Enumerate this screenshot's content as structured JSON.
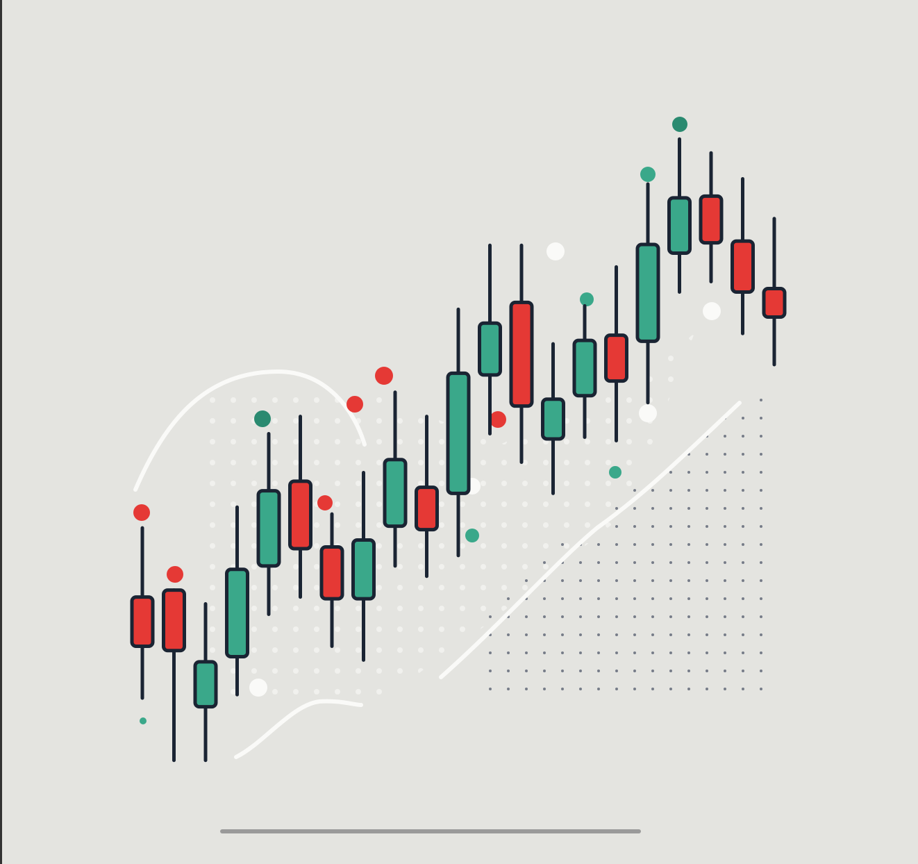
{
  "chart_data": {
    "type": "candlestick",
    "open": [
      30.9,
      31.7,
      18.2,
      24.0,
      34.5,
      44.3,
      36.7,
      30.7,
      39.1,
      43.6,
      42.9,
      56.6,
      65.0,
      49.2,
      54.2,
      61.2,
      60.5,
      70.7,
      77.3,
      72.1,
      66.6
    ],
    "high": [
      38.9,
      31.7,
      30.1,
      41.3,
      49.8,
      51.8,
      40.5,
      45.3,
      54.6,
      51.8,
      64.2,
      71.6,
      71.6,
      60.2,
      64.6,
      69.1,
      78.7,
      83.9,
      82.3,
      79.3,
      74.7
    ],
    "low": [
      19.2,
      12.0,
      12.0,
      19.6,
      28.9,
      30.9,
      25.2,
      23.6,
      34.5,
      33.3,
      35.7,
      49.8,
      46.5,
      42.9,
      49.4,
      49.0,
      53.4,
      66.2,
      67.4,
      61.4,
      57.8
    ],
    "close": [
      25.2,
      24.7,
      23.4,
      34.1,
      43.2,
      36.5,
      30.7,
      37.5,
      46.8,
      38.7,
      56.8,
      62.6,
      53.0,
      53.8,
      60.6,
      55.9,
      71.7,
      77.1,
      71.9,
      66.2,
      63.3
    ],
    "up_color": "#3aa88a",
    "down_color": "#e53935",
    "ylim": [
      0,
      100
    ]
  }
}
